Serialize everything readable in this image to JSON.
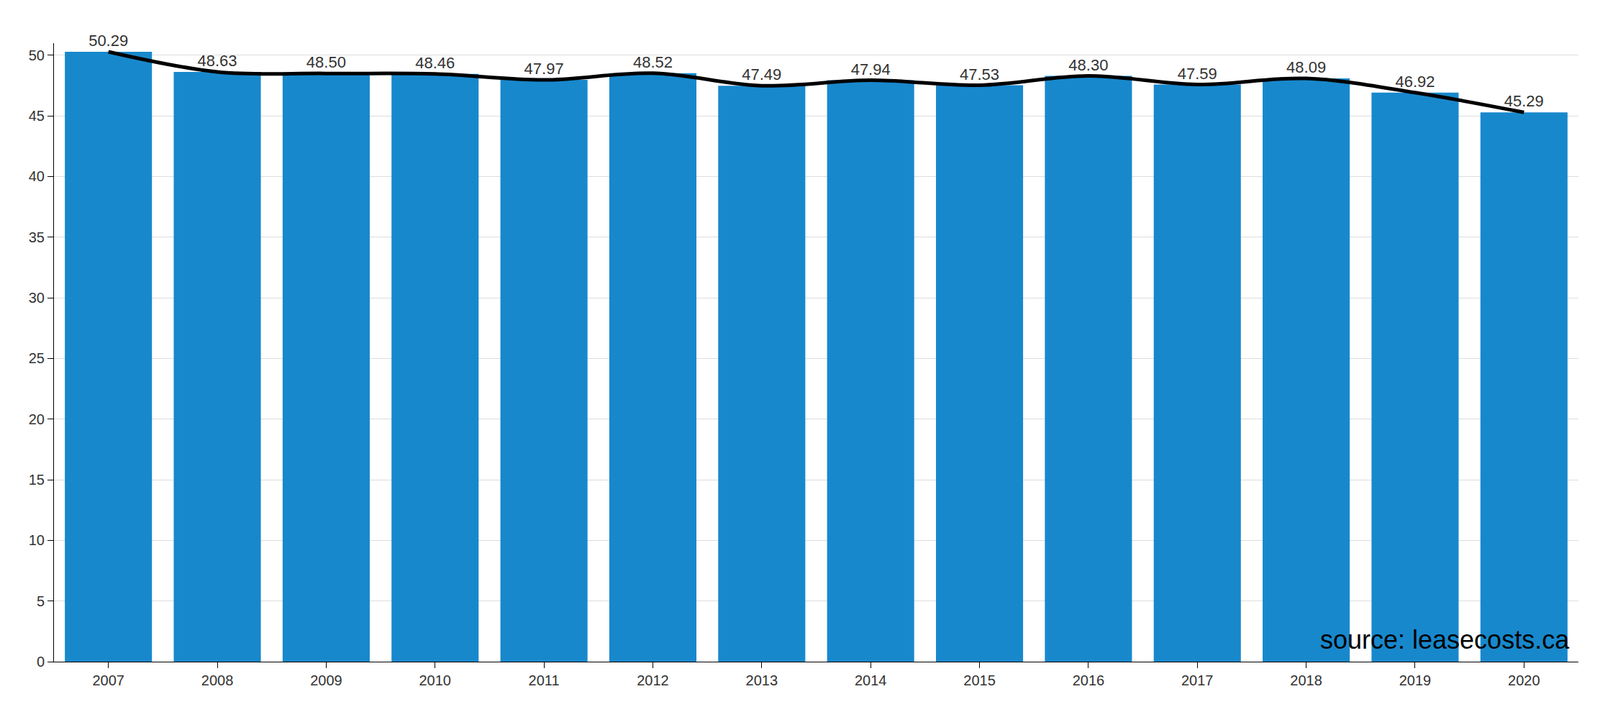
{
  "chart_data": {
    "type": "bar",
    "categories": [
      "2007",
      "2008",
      "2009",
      "2010",
      "2011",
      "2012",
      "2013",
      "2014",
      "2015",
      "2016",
      "2017",
      "2018",
      "2019",
      "2020"
    ],
    "series": [
      {
        "type": "bar",
        "color": "#1888cc",
        "data_labels": true,
        "values": [
          50.29,
          48.63,
          48.5,
          48.46,
          47.97,
          48.52,
          47.49,
          47.94,
          47.53,
          48.3,
          47.59,
          48.09,
          46.92,
          45.29
        ],
        "value_labels": [
          "50.29",
          "48.63",
          "48.50",
          "48.46",
          "47.97",
          "48.52",
          "47.49",
          "47.94",
          "47.53",
          "48.30",
          "47.59",
          "48.09",
          "46.92",
          "45.29"
        ]
      },
      {
        "type": "line",
        "color": "#000000",
        "line_style": "smooth",
        "values": [
          50.29,
          48.63,
          48.5,
          48.46,
          47.97,
          48.52,
          47.49,
          47.94,
          47.53,
          48.3,
          47.59,
          48.09,
          46.92,
          45.29
        ]
      }
    ],
    "ylim": [
      0,
      51
    ],
    "yticks": [
      0,
      5,
      10,
      15,
      20,
      25,
      30,
      35,
      40,
      45,
      50
    ],
    "grid": true,
    "annotations": [
      {
        "text": "source: leasecosts.ca"
      }
    ]
  }
}
